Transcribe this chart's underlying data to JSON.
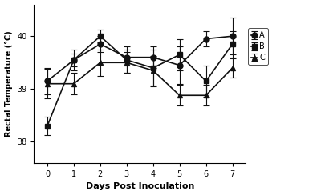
{
  "x": [
    0,
    1,
    2,
    3,
    4,
    5,
    6,
    7
  ],
  "series_A": {
    "y": [
      39.15,
      39.55,
      39.85,
      39.6,
      39.6,
      39.45,
      39.95,
      40.0
    ],
    "yerr": [
      0.25,
      0.12,
      0.15,
      0.15,
      0.2,
      0.35,
      0.15,
      0.35
    ],
    "label": "A",
    "marker": "o",
    "color": "#111111"
  },
  "series_B": {
    "y": [
      38.3,
      39.55,
      40.0,
      39.55,
      39.4,
      39.65,
      39.15,
      39.85
    ],
    "yerr": [
      0.18,
      0.2,
      0.12,
      0.25,
      0.35,
      0.3,
      0.3,
      0.25
    ],
    "label": "B",
    "marker": "s",
    "color": "#111111"
  },
  "series_C": {
    "y": [
      39.1,
      39.1,
      39.5,
      39.5,
      39.35,
      38.88,
      38.88,
      39.4
    ],
    "yerr": [
      0.28,
      0.2,
      0.25,
      0.2,
      0.28,
      0.2,
      0.2,
      0.18
    ],
    "label": "C",
    "marker": "^",
    "color": "#111111"
  },
  "xlabel": "Days Post Inoculation",
  "ylabel": "Rectal Temperature (°C)",
  "ylim": [
    37.6,
    40.6
  ],
  "yticks": [
    38.0,
    39.0,
    40.0
  ],
  "xticks": [
    0,
    1,
    2,
    3,
    4,
    5,
    6,
    7
  ],
  "background_color": "#ffffff",
  "linewidth": 1.2,
  "markersize": 5,
  "capsize": 3
}
